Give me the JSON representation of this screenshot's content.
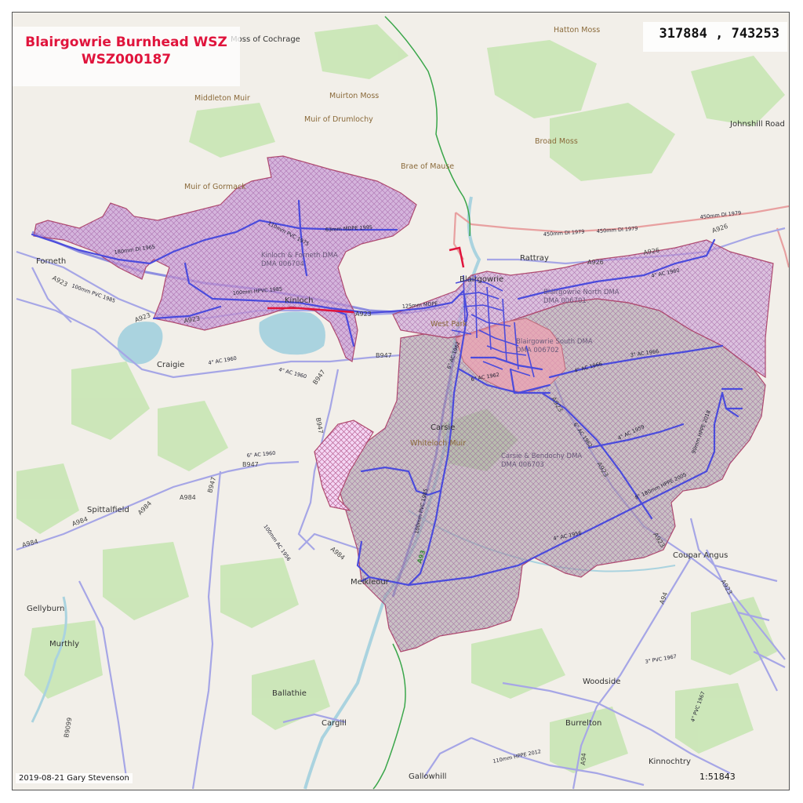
{
  "title": {
    "line1": "Blairgowrie Burnhead WSZ",
    "line2": "WSZ000187"
  },
  "coordinates": "317884 , 743253",
  "credit": "2019-08-21 Gary Stevenson",
  "scale": "1:51843",
  "colors": {
    "title": "#e0143c",
    "mains_pipe": "#4b4bdc",
    "trunk_pipe": "#e0143c",
    "zone_fill": "#c89bd6",
    "zone_outline": "#b04a6e",
    "dma_grey": "#a79aa6",
    "water": "#aad3df",
    "woodland": "#c8e6b4",
    "road": "#a6a6e6",
    "railway_green": "#3aa64a",
    "boundary": "#e8a0a0"
  },
  "dma_labels": {
    "kinloch": {
      "name": "Kinloch & Forneth DMA",
      "code": "DMA 006704"
    },
    "blair_north": {
      "name": "Blairgowrie North DMA",
      "code": "DMA 006701"
    },
    "blair_south": {
      "name": "Blairgowrie South DMA",
      "code": "DMA 006702"
    },
    "carsie": {
      "name": "Carsie & Bendochy DMA",
      "code": "DMA 006703"
    }
  },
  "places": {
    "moss_of_cochrage": "Moss of Cochrage",
    "hatton_moss": "Hatton Moss",
    "middleton_muir": "Middleton Muir",
    "muirton_moss": "Muirton Moss",
    "muir_of_drumlochy": "Muir of Drumlochy",
    "johnshill_road": "Johnshill Road",
    "broad_moss": "Broad Moss",
    "brae_of_mause": "Brae of Mause",
    "muir_of_gormack": "Muir of Gormack",
    "rattray": "Rattray",
    "forneth": "Forneth",
    "blairgowrie": "Blairgowrie",
    "kinloch": "Kinloch",
    "west_park": "West Park",
    "craigie": "Craigie",
    "carsie": "Carsie",
    "whiteloch_muir": "Whiteloch Muir",
    "spittalfield": "Spittalfield",
    "coupar_angus": "Coupar Angus",
    "meikleour": "Meikleour",
    "gellyburn": "Gellyburn",
    "murthly": "Murthly",
    "woodside": "Woodside",
    "ballathie": "Ballathie",
    "cargill": "Cargill",
    "burrelton": "Burrelton",
    "kinnochtry": "Kinnochtry",
    "gallowhill": "Gallowhill"
  },
  "roads": {
    "a923_w": "A923",
    "a923_w2": "A923",
    "a923_m": "A923",
    "a926_1": "A926",
    "a926_2": "A926",
    "a926_3": "A926",
    "b947_1": "B947",
    "b947_2": "B947",
    "b947_3": "B947",
    "a984_1": "A984",
    "a984_2": "A984",
    "a984_3": "A984",
    "a984_4": "A984",
    "a984_5": "A984",
    "a93": "A93",
    "a923_s": "A923",
    "a923_se": "A923",
    "a94_1": "A94",
    "a94_2": "A94",
    "a923_e": "A923",
    "b9099": "B9099",
    "a923_n": "A923"
  },
  "pipes": {
    "p1": "63mm MDPE 1995",
    "p2": "110mm PVC 1975",
    "p3": "180mm DI 1965",
    "p4": "100mm HPVC 1985",
    "p5": "125mm MDPE",
    "p6": "6\" AC 1962",
    "p7": "4\" AC 1960",
    "p8": "3\" AC 1966",
    "p9": "4\" AC 1966",
    "p10": "6\" AC 1962",
    "p11": "6\" AC 1962",
    "p12": "4\" AC 1959",
    "p13": "90mm HPPE 2018",
    "p14": "8\" 180mm HPPE 2005",
    "p15": "4\" AC 1956",
    "p16": "100mm PVC 1985",
    "p17": "450mm DI 1979",
    "p18": "450mm DI 1979",
    "p19": "450mm DI 1979",
    "p20": "4\" AC 1960",
    "p21": "4\" AC 1960",
    "p22": "100mm PVC 1985",
    "p23": "110mm HPPE 2012",
    "p24": "6\" AC 1960",
    "p25": "100mm AC 1956",
    "p26": "3\" PVC 1967",
    "p27": "4\" PVC 1967"
  }
}
